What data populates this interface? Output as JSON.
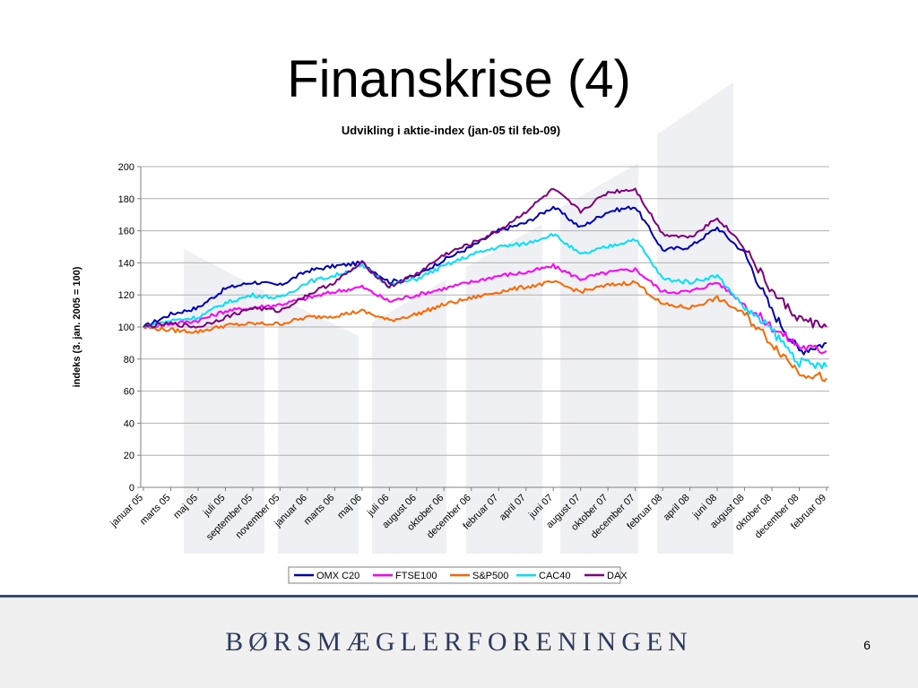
{
  "slide": {
    "title": "Finanskrise (4)",
    "brand": "BØRSMÆGLERFORENINGEN",
    "page_number": "6"
  },
  "chart_data": {
    "type": "line",
    "title": "Udvikling i aktie-index (jan-05 til feb-09)",
    "xlabel": "",
    "ylabel": "indeks (3. jan. 2005 = 100)",
    "ylim": [
      0,
      200
    ],
    "yticks": [
      0,
      20,
      40,
      60,
      80,
      100,
      120,
      140,
      160,
      180,
      200
    ],
    "grid": true,
    "legend_position": "bottom",
    "categories": [
      "januar 05",
      "marts 05",
      "maj 05",
      "juli 05",
      "september 05",
      "november 05",
      "januar 06",
      "marts 06",
      "maj 06",
      "juli 06",
      "august 06",
      "oktober 06",
      "december 06",
      "februar 07",
      "april 07",
      "juni 07",
      "august 07",
      "oktober 07",
      "december 07",
      "februar 08",
      "april 08",
      "juni 08",
      "august 08",
      "oktober 08",
      "december 08",
      "februar 09"
    ],
    "x": [
      "2005-01",
      "2005-03",
      "2005-05",
      "2005-07",
      "2005-09",
      "2005-11",
      "2006-01",
      "2006-03",
      "2006-05",
      "2006-07",
      "2006-08",
      "2006-10",
      "2006-12",
      "2007-02",
      "2007-04",
      "2007-06",
      "2007-08",
      "2007-10",
      "2007-12",
      "2008-02",
      "2008-04",
      "2008-06",
      "2008-08",
      "2008-10",
      "2008-12",
      "2009-02"
    ],
    "series": [
      {
        "name": "OMX C20",
        "color": "#0000c0",
        "values": [
          100,
          108,
          112,
          124,
          128,
          126,
          135,
          138,
          140,
          128,
          132,
          142,
          150,
          160,
          165,
          175,
          162,
          172,
          175,
          148,
          150,
          162,
          146,
          110,
          85,
          90
        ]
      },
      {
        "name": "FTSE100",
        "color": "#ff00ff",
        "values": [
          100,
          102,
          104,
          110,
          112,
          114,
          118,
          122,
          125,
          116,
          120,
          124,
          128,
          132,
          134,
          138,
          130,
          134,
          136,
          122,
          122,
          128,
          114,
          100,
          88,
          85
        ]
      },
      {
        "name": "S&P500",
        "color": "#ff6600",
        "values": [
          100,
          98,
          97,
          101,
          102,
          102,
          106,
          107,
          110,
          104,
          108,
          114,
          118,
          122,
          125,
          128,
          122,
          126,
          128,
          114,
          112,
          118,
          108,
          90,
          72,
          68
        ]
      },
      {
        "name": "CAC40",
        "color": "#00e0ff",
        "values": [
          100,
          104,
          106,
          115,
          120,
          118,
          128,
          132,
          138,
          126,
          130,
          138,
          145,
          150,
          152,
          158,
          145,
          150,
          155,
          130,
          128,
          132,
          112,
          98,
          78,
          75
        ]
      },
      {
        "name": "DAX",
        "color": "#800080",
        "values": [
          100,
          102,
          100,
          106,
          112,
          110,
          120,
          128,
          140,
          125,
          133,
          145,
          152,
          160,
          172,
          186,
          172,
          184,
          186,
          158,
          156,
          168,
          150,
          122,
          105,
          100
        ]
      }
    ]
  }
}
